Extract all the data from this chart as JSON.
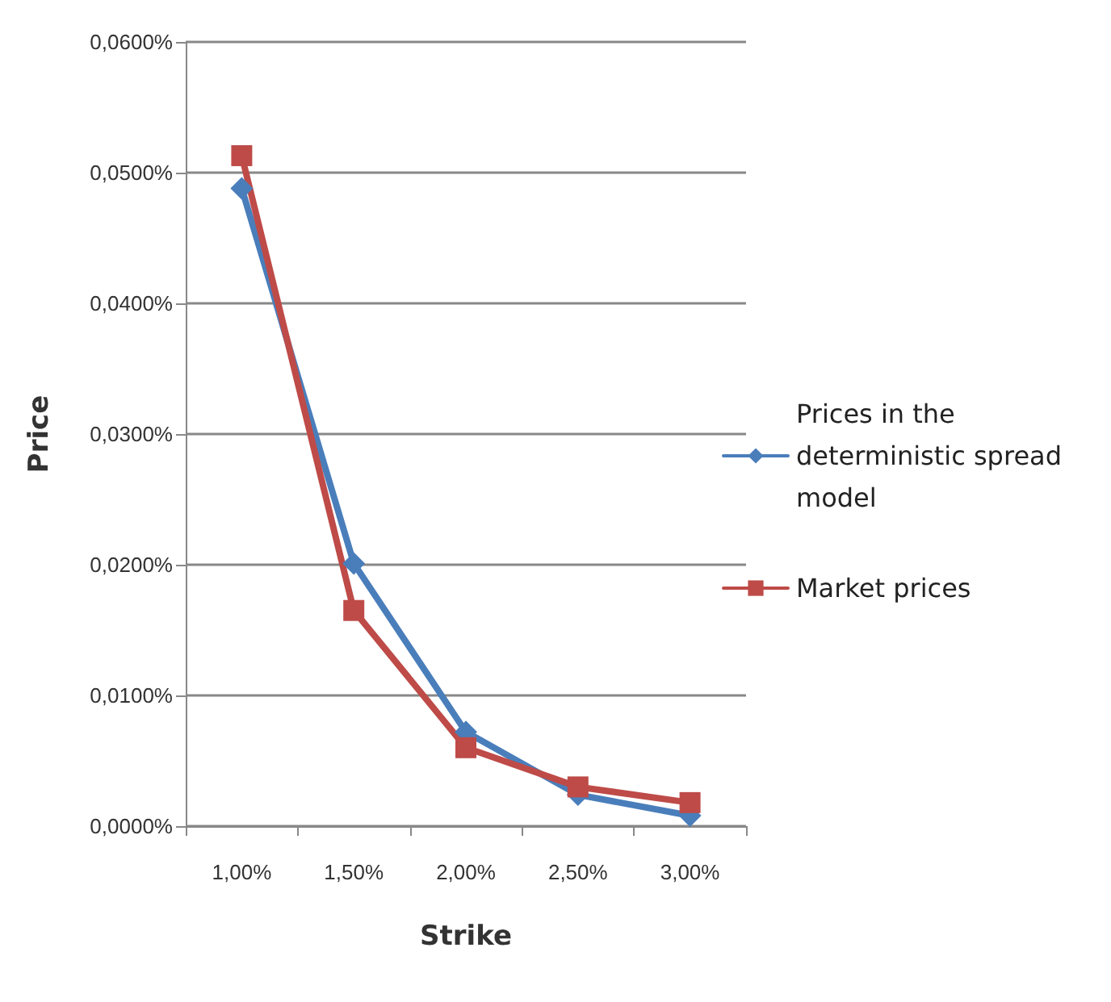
{
  "chart_data": {
    "type": "line",
    "xlabel": "Strike",
    "ylabel": "Price",
    "categories": [
      "1,00%",
      "1,50%",
      "2,00%",
      "2,50%",
      "3,00%"
    ],
    "series": [
      {
        "name": "Prices in the deterministic spread model",
        "color": "#4a7ebb",
        "marker": "diamond",
        "values": [
          0.0488,
          0.0201,
          0.0072,
          0.0024,
          0.0008
        ]
      },
      {
        "name": "Market prices",
        "color": "#be4b48",
        "marker": "square",
        "values": [
          0.0513,
          0.0165,
          0.006,
          0.003,
          0.0018
        ]
      }
    ],
    "ylim": [
      0,
      0.06
    ],
    "yticks": [
      {
        "value": 0,
        "label": "0,0000%"
      },
      {
        "value": 0.01,
        "label": "0,0100%"
      },
      {
        "value": 0.02,
        "label": "0,0200%"
      },
      {
        "value": 0.03,
        "label": "0,0300%"
      },
      {
        "value": 0.04,
        "label": "0,0400%"
      },
      {
        "value": 0.05,
        "label": "0,0500%"
      },
      {
        "value": 0.06,
        "label": "0,0600%"
      }
    ],
    "grid": "y",
    "legend": "right",
    "line_style": "solid"
  }
}
